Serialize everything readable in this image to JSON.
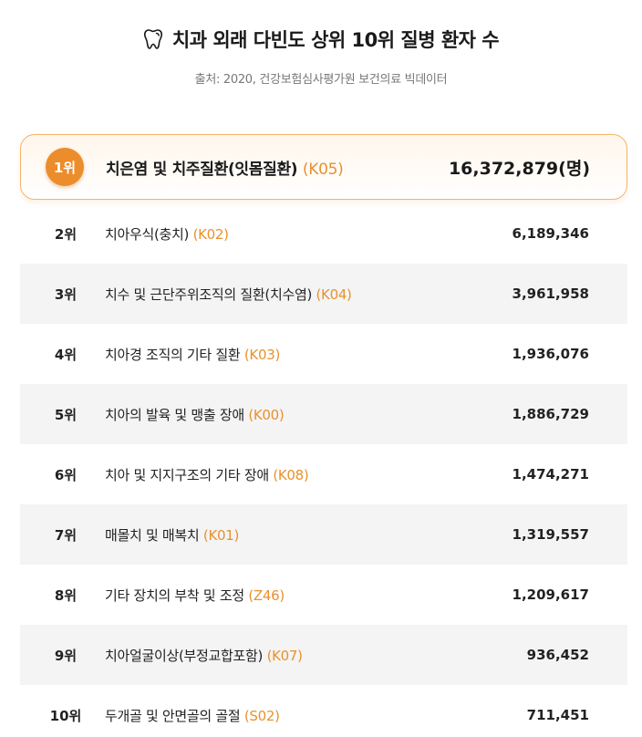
{
  "header": {
    "title": "치과 외래 다빈도 상위 10위 질병 환자 수",
    "source": "출처: 2020, 건강보험심사평가원 보건의료 빅데이터",
    "icon": "tooth-icon"
  },
  "colors": {
    "accent": "#ec8d2b",
    "code": "#e8912d",
    "highlight_border": "#f3b56a",
    "row_shade": "#f4f4f4"
  },
  "rows": [
    {
      "rank": "1위",
      "name": "치은염 및 치주질환(잇몸질환)",
      "code": "(K05)",
      "count": "16,372,879(명)"
    },
    {
      "rank": "2위",
      "name": "치아우식(충치)",
      "code": "(K02)",
      "count": "6,189,346"
    },
    {
      "rank": "3위",
      "name": "치수 및 근단주위조직의 질환(치수염)",
      "code": "(K04)",
      "count": "3,961,958"
    },
    {
      "rank": "4위",
      "name": "치아경 조직의 기타 질환",
      "code": "(K03)",
      "count": "1,936,076"
    },
    {
      "rank": "5위",
      "name": "치아의 발육 및 맹출 장애",
      "code": "(K00)",
      "count": "1,886,729"
    },
    {
      "rank": "6위",
      "name": "치아 및 지지구조의 기타 장애",
      "code": "(K08)",
      "count": "1,474,271"
    },
    {
      "rank": "7위",
      "name": "매몰치 및 매복치",
      "code": "(K01)",
      "count": "1,319,557"
    },
    {
      "rank": "8위",
      "name": "기타 장치의 부착 및 조정",
      "code": "(Z46)",
      "count": "1,209,617"
    },
    {
      "rank": "9위",
      "name": "치아얼굴이상(부정교합포함)",
      "code": "(K07)",
      "count": "936,452"
    },
    {
      "rank": "10위",
      "name": "두개골 및 안면골의 골절",
      "code": "(S02)",
      "count": "711,451"
    }
  ]
}
